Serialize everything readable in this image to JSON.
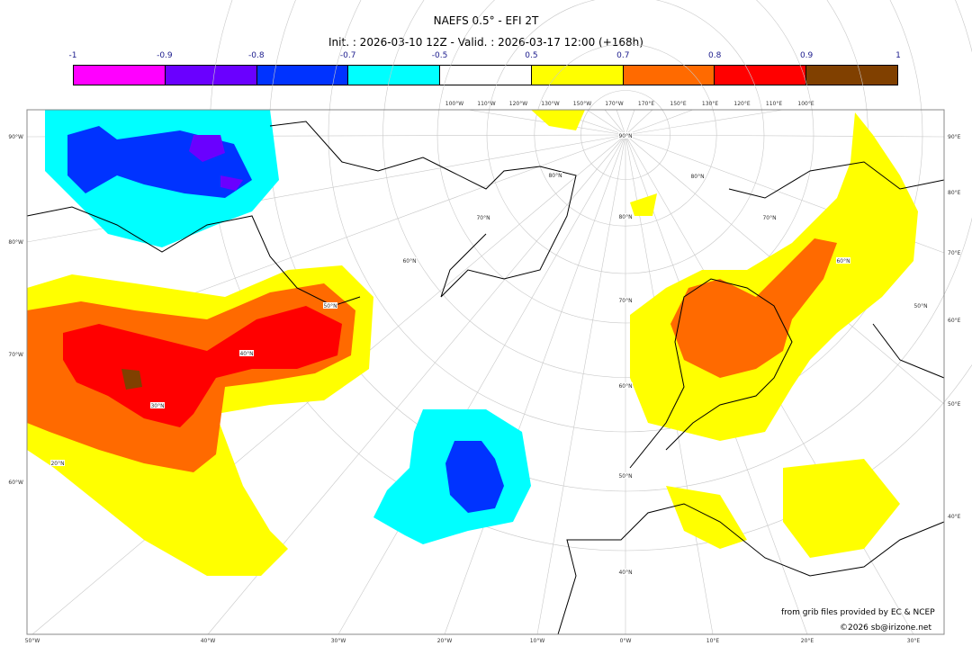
{
  "header": {
    "title": "NAEFS 0.5° - EFI 2T",
    "subtitle": "Init. : 2026-03-10 12Z - Valid. : 2026-03-17 12:00 (+168h)"
  },
  "colorbar": {
    "labels": [
      "-1",
      "-0.9",
      "-0.8",
      "-0.7",
      "-0.5",
      "0.5",
      "0.7",
      "0.8",
      "0.9",
      "1"
    ],
    "colors": [
      "#ff00ff",
      "#6a00ff",
      "#0033ff",
      "#00ffff",
      "#ffffff",
      "#ffff00",
      "#ff6a00",
      "#ff0000",
      "#804000"
    ]
  },
  "axes": {
    "left": [
      "90°W",
      "80°W",
      "70°W",
      "60°W"
    ],
    "right": [
      "90°E",
      "80°E",
      "70°E",
      "60°E",
      "50°E",
      "40°E"
    ],
    "bottom": [
      "50°W",
      "40°W",
      "30°W",
      "20°W",
      "10°W",
      "0°W",
      "10°E",
      "20°E",
      "30°E"
    ],
    "top": [
      "100°W",
      "110°W",
      "120°W",
      "130°W",
      "150°W",
      "170°W",
      "170°E",
      "150°E",
      "130°E",
      "120°E",
      "110°E",
      "100°E"
    ],
    "lat_labels": [
      "90°N",
      "80°N",
      "70°N",
      "60°N",
      "50°N",
      "40°N",
      "30°N",
      "20°N",
      "80°N",
      "70°N",
      "60°N",
      "50°N",
      "40°N",
      "80°N",
      "70°N",
      "60°N",
      "50°N"
    ]
  },
  "credits": {
    "source": "from grib files provided by EC & NCEP",
    "copyright": "©2026 sb@irizone.net"
  }
}
